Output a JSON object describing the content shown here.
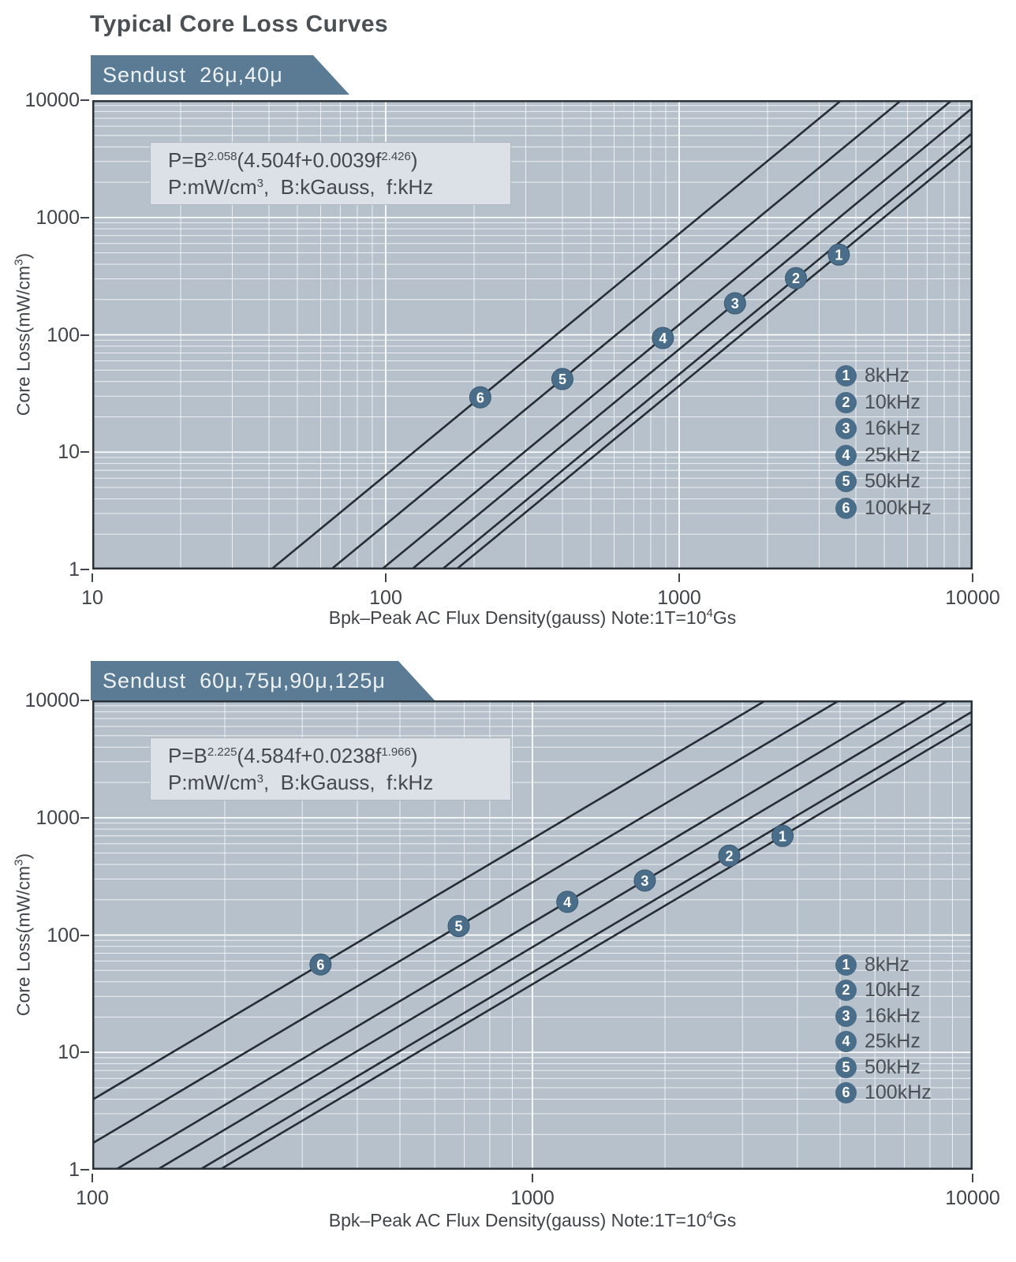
{
  "page": {
    "title": "Typical Core Loss Curves"
  },
  "chart_data": [
    {
      "type": "line",
      "banner": "Sendust  26μ,40μ",
      "formula": "P=B^{2.058}(4.504f+0.0039f^{2.426})",
      "formula_units": "P:mW/cm^{3},  B:kGauss,  f:kHz",
      "formula_params": {
        "B_exponent": 2.058,
        "f_linear_coef": 4.504,
        "f_power_coef": 0.0039,
        "f_exponent": 2.426
      },
      "xlabel": "Bpk–Peak AC Flux Density(gauss) Note:1T=10^{4}Gs",
      "ylabel": "Core Loss(mW/cm^{3})",
      "x_scale": "log",
      "y_scale": "log",
      "xlim_gauss": [
        10,
        10000
      ],
      "ylim_mW_cm3": [
        1,
        10000
      ],
      "x_ticks": [
        "10",
        "100",
        "1000",
        "10000"
      ],
      "y_ticks": [
        "10000",
        "1000",
        "100",
        "10",
        "1"
      ],
      "grid": "log-minor-white",
      "legend_position": "right-middle",
      "series": [
        {
          "marker_num": "1",
          "label": "8kHz",
          "f_khz": 8,
          "marker_B_gauss": 3500,
          "marker_P_mW_cm3": 483
        },
        {
          "marker_num": "2",
          "label": "10kHz",
          "f_khz": 10,
          "marker_B_gauss": 2500,
          "marker_P_mW_cm3": 304
        },
        {
          "marker_num": "3",
          "label": "16kHz",
          "f_khz": 16,
          "marker_B_gauss": 1550,
          "marker_P_mW_cm3": 186
        },
        {
          "marker_num": "4",
          "label": "25kHz",
          "f_khz": 25,
          "marker_B_gauss": 880,
          "marker_P_mW_cm3": 94
        },
        {
          "marker_num": "5",
          "label": "50kHz",
          "f_khz": 50,
          "marker_B_gauss": 400,
          "marker_P_mW_cm3": 42
        },
        {
          "marker_num": "6",
          "label": "100kHz",
          "f_khz": 100,
          "marker_B_gauss": 210,
          "marker_P_mW_cm3": 29
        }
      ]
    },
    {
      "type": "line",
      "banner": "Sendust  60μ,75μ,90μ,125μ",
      "formula": "P=B^{2.225}(4.584f+0.0238f^{1.966})",
      "formula_units": "P:mW/cm^{3},  B:kGauss,  f:kHz",
      "formula_params": {
        "B_exponent": 2.225,
        "f_linear_coef": 4.584,
        "f_power_coef": 0.0238,
        "f_exponent": 1.966
      },
      "xlabel": "Bpk–Peak AC Flux Density(gauss) Note:1T=10^{4}Gs",
      "ylabel": "Core Loss(mW/cm^{3})",
      "x_scale": "log",
      "y_scale": "log",
      "xlim_gauss": [
        100,
        10000
      ],
      "ylim_mW_cm3": [
        1,
        10000
      ],
      "x_ticks": [
        "100",
        "1000",
        "10000"
      ],
      "y_ticks": [
        "10000",
        "1000",
        "100",
        "10",
        "1"
      ],
      "grid": "log-minor-white",
      "legend_position": "right-middle",
      "series": [
        {
          "marker_num": "1",
          "label": "8kHz",
          "f_khz": 8,
          "marker_B_gauss": 3700,
          "marker_P_mW_cm3": 700
        },
        {
          "marker_num": "2",
          "label": "10kHz",
          "f_khz": 10,
          "marker_B_gauss": 2800,
          "marker_P_mW_cm3": 475
        },
        {
          "marker_num": "3",
          "label": "16kHz",
          "f_khz": 16,
          "marker_B_gauss": 1800,
          "marker_P_mW_cm3": 292
        },
        {
          "marker_num": "4",
          "label": "25kHz",
          "f_khz": 25,
          "marker_B_gauss": 1200,
          "marker_P_mW_cm3": 192
        },
        {
          "marker_num": "5",
          "label": "50kHz",
          "f_khz": 50,
          "marker_B_gauss": 680,
          "marker_P_mW_cm3": 119
        },
        {
          "marker_num": "6",
          "label": "100kHz",
          "f_khz": 100,
          "marker_B_gauss": 330,
          "marker_P_mW_cm3": 56
        }
      ]
    }
  ],
  "colors": {
    "banner_bg": "#5b7b95",
    "banner_text": "#eef3f6",
    "plot_bg": "#b6c1cb",
    "grid_major": "#fdfefe",
    "grid_minor": "#ffffff",
    "curve": "#262d35",
    "plot_border": "#2b323a",
    "marker_fill": "#4a6d89",
    "marker_edge": "#3a5971",
    "marker_text": "#ffffff",
    "text_dark": "#3f444a",
    "formula_box_bg": "#dce1e7",
    "formula_box_border": "#aeb6bf"
  }
}
